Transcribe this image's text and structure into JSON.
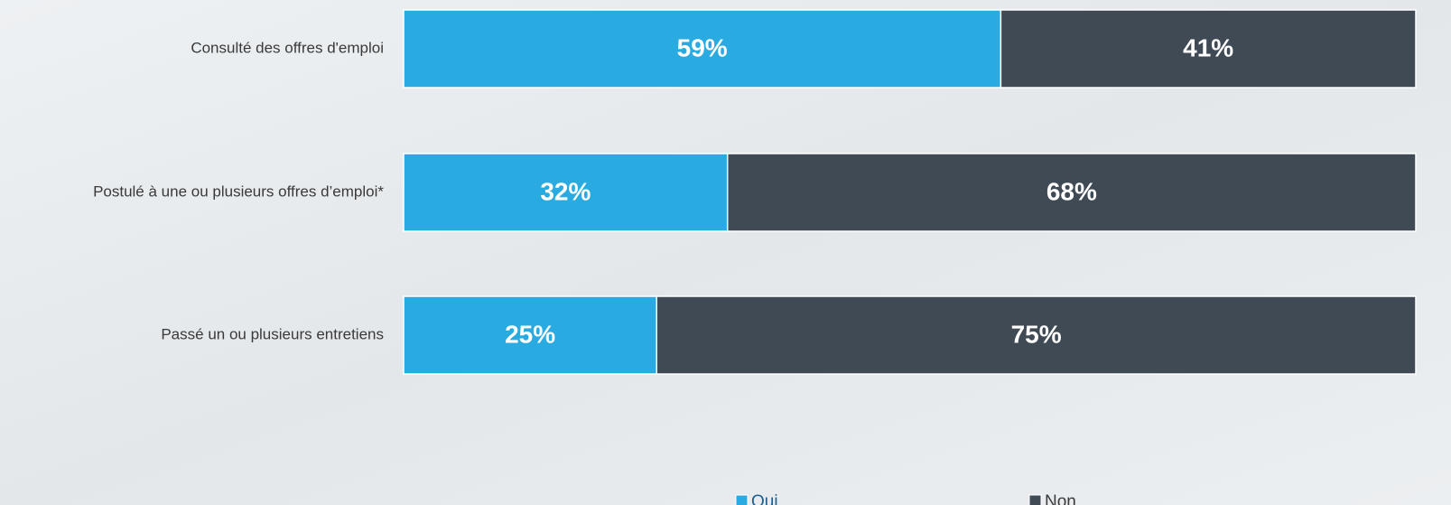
{
  "chart_data": {
    "type": "stacked-bar",
    "orientation": "horizontal",
    "categories": [
      "Consulté des offres d'emploi",
      "Postulé à une ou plusieurs offres d’emploi*",
      "Passé un ou plusieurs entretiens"
    ],
    "series": [
      {
        "name": "Oui",
        "color": "#29abe2",
        "values": [
          59,
          32,
          25
        ],
        "value_labels": [
          "59%",
          "32%",
          "25%"
        ]
      },
      {
        "name": "Non",
        "color": "#3f4a55",
        "values": [
          41,
          68,
          75
        ],
        "value_labels": [
          "41%",
          "68%",
          "75%"
        ]
      }
    ],
    "xlim": [
      0,
      100
    ],
    "legend": "bottom"
  }
}
